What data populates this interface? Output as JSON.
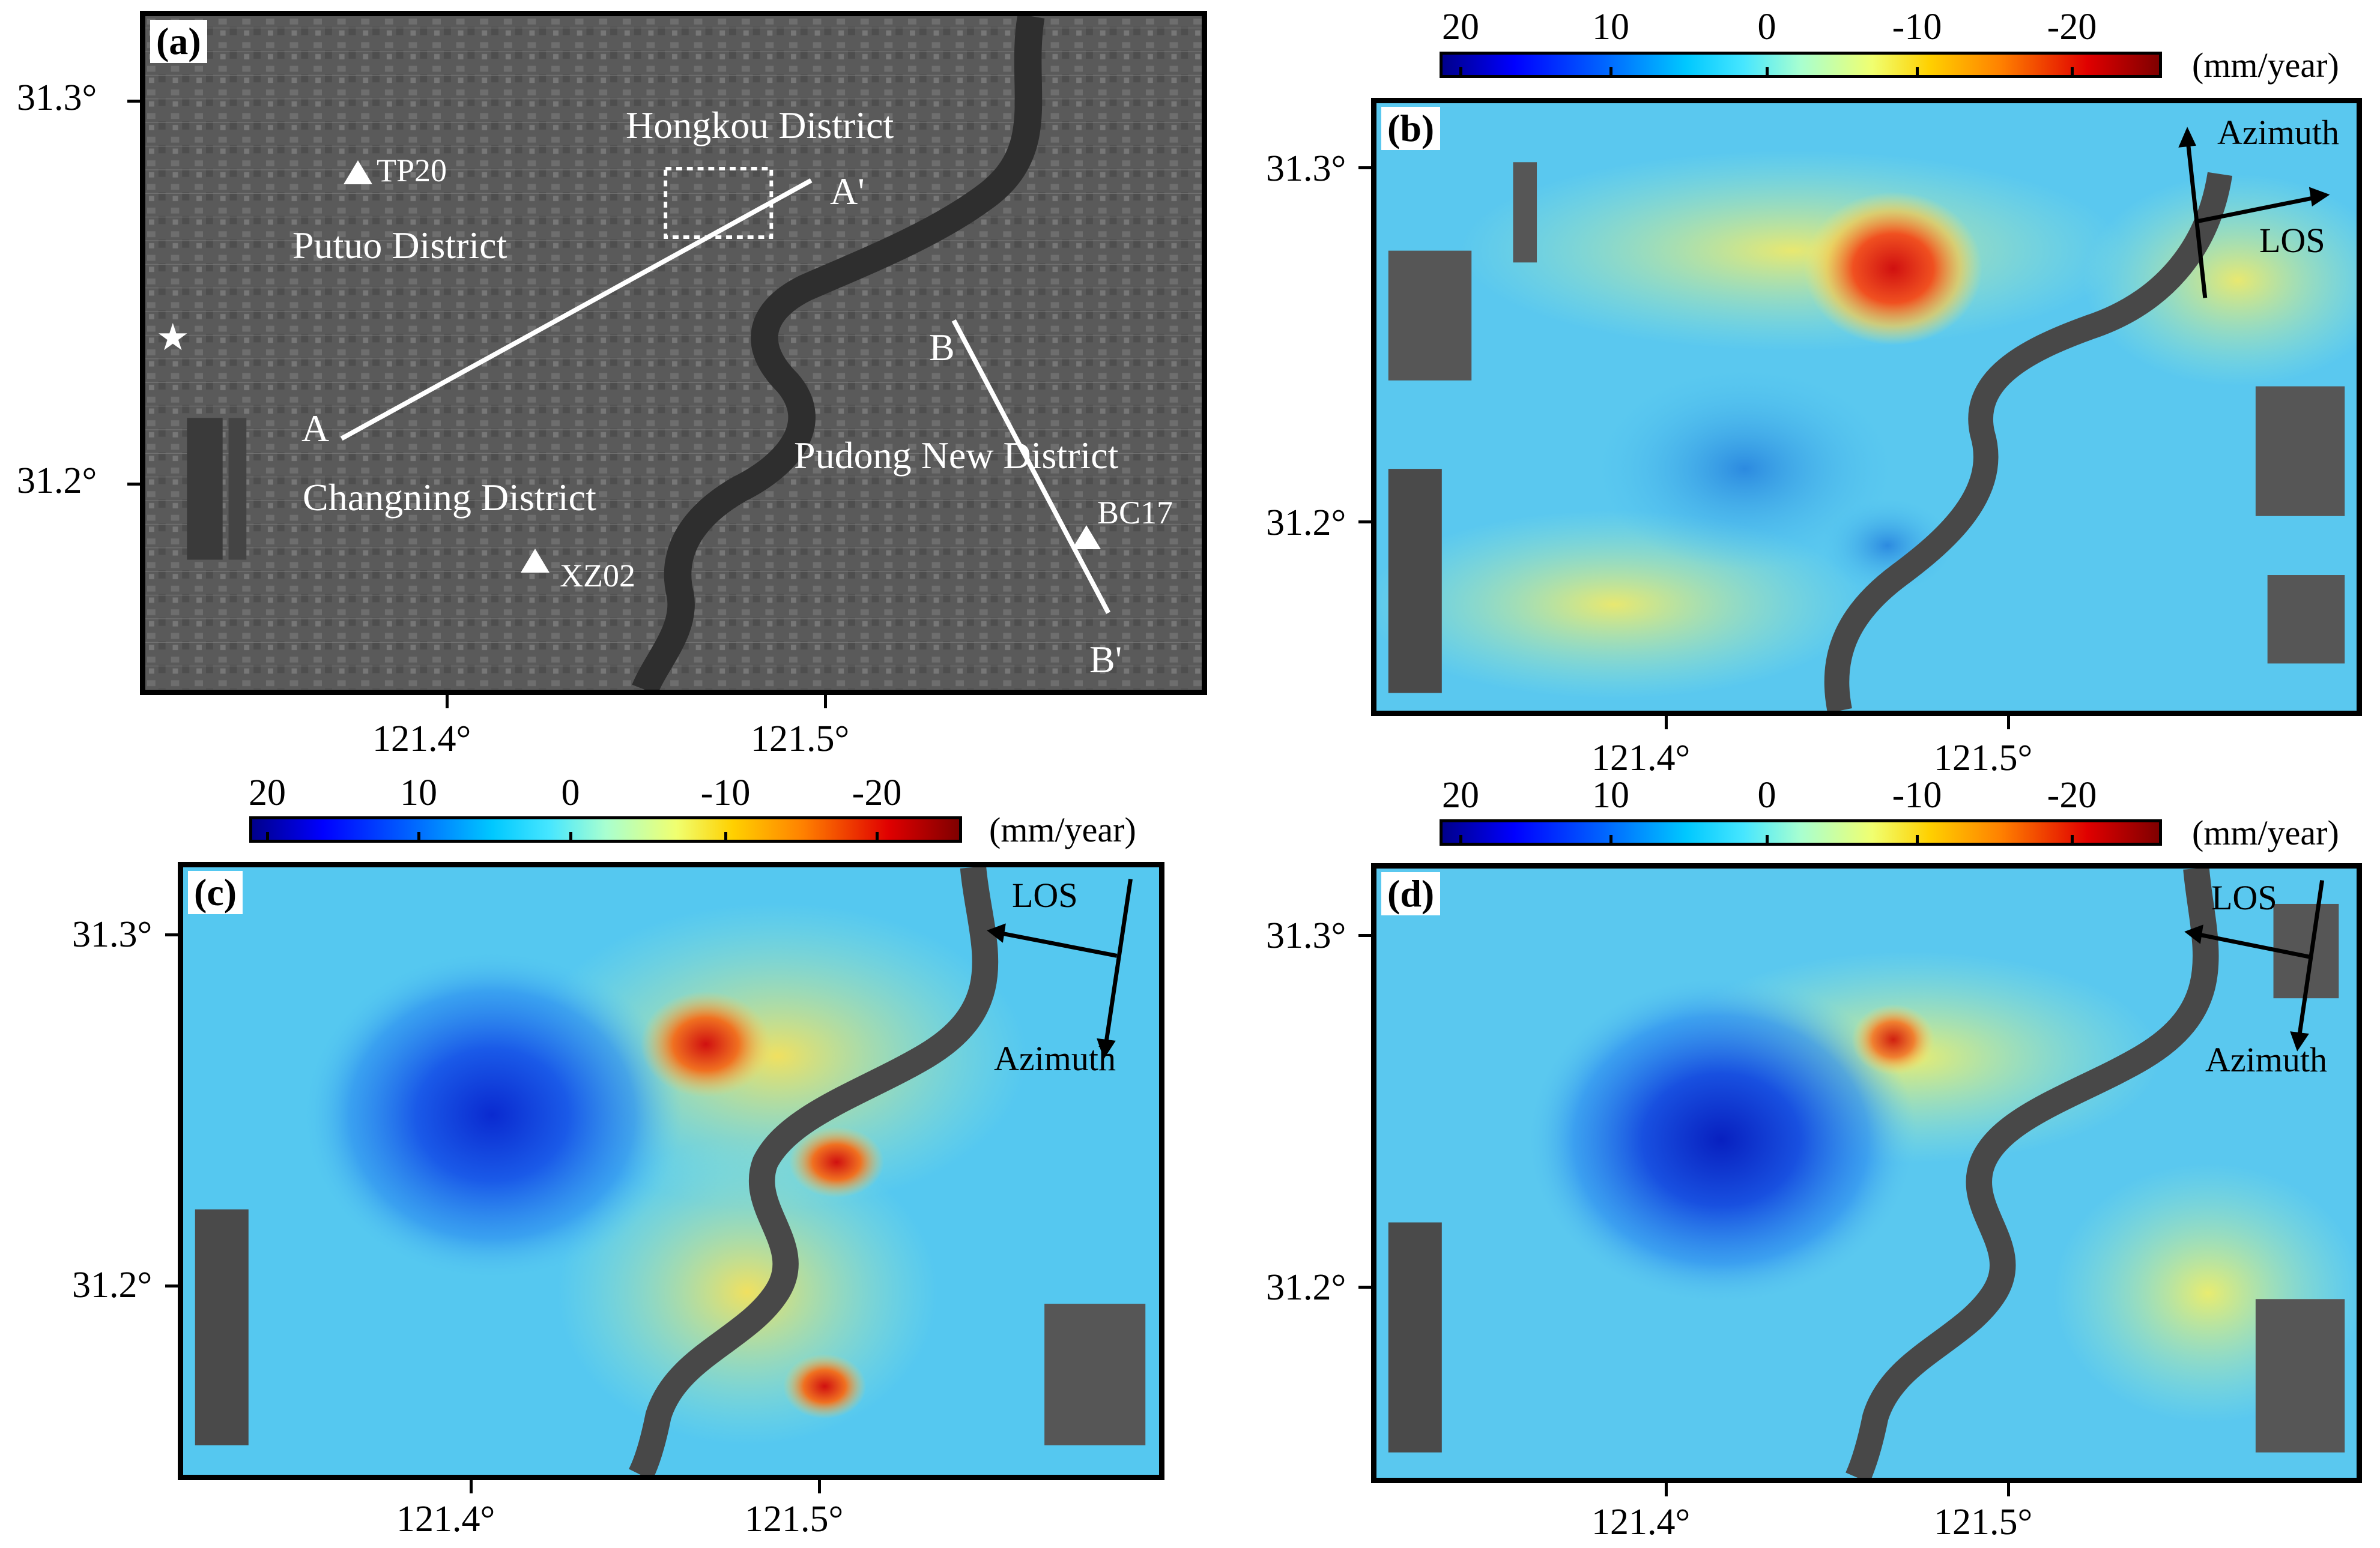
{
  "panels": {
    "a": {
      "label": "(a)",
      "districts": {
        "hongkou": "Hongkou District",
        "putuo": "Putuo District",
        "changning": "Changning District",
        "pudong": "Pudong New District"
      },
      "stations": {
        "tp20": "TP20",
        "xz02": "XZ02",
        "bc17": "BC17"
      },
      "profile_labels": {
        "a": "A",
        "a_prime": "A'",
        "b": "B",
        "b_prime": "B'"
      },
      "star_icon": "star-icon",
      "triangle_icon": "triangle-icon"
    },
    "b": {
      "label": "(b)",
      "azimuth": "Azimuth",
      "los": "LOS"
    },
    "c": {
      "label": "(c)",
      "azimuth": "Azimuth",
      "los": "LOS"
    },
    "d": {
      "label": "(d)",
      "azimuth": "Azimuth",
      "los": "LOS"
    }
  },
  "axes": {
    "lat_ticks": [
      "31.3°",
      "31.2°"
    ],
    "lon_ticks": [
      "121.4°",
      "121.5°"
    ]
  },
  "colorbar": {
    "ticks": [
      "20",
      "10",
      "0",
      "-10",
      "-20"
    ],
    "unit": "(mm/year)",
    "colors": [
      "#00008b",
      "#0000ff",
      "#00c8ff",
      "#a8ffd0",
      "#f0ff70",
      "#ff8000",
      "#e00000",
      "#800000"
    ]
  },
  "colors": {
    "river": "#4a4a4a",
    "background_velocity": "#55c8f0",
    "frame": "#000000"
  }
}
